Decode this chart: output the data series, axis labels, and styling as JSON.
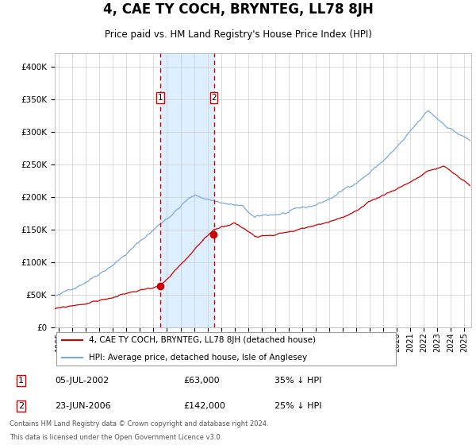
{
  "title": "4, CAE TY COCH, BRYNTEG, LL78 8JH",
  "subtitle": "Price paid vs. HM Land Registry's House Price Index (HPI)",
  "legend_line1": "4, CAE TY COCH, BRYNTEG, LL78 8JH (detached house)",
  "legend_line2": "HPI: Average price, detached house, Isle of Anglesey",
  "annotation1_label": "1",
  "annotation1_date": "05-JUL-2002",
  "annotation1_price": "£63,000",
  "annotation1_hpi": "35% ↓ HPI",
  "annotation2_label": "2",
  "annotation2_date": "23-JUN-2006",
  "annotation2_price": "£142,000",
  "annotation2_hpi": "25% ↓ HPI",
  "footer_line1": "Contains HM Land Registry data © Crown copyright and database right 2024.",
  "footer_line2": "This data is licensed under the Open Government Licence v3.0.",
  "red_color": "#cc0000",
  "blue_color": "#7aaadd",
  "shade_color": "#ddeeff",
  "grid_color": "#cccccc",
  "ylim": [
    0,
    420000
  ],
  "yticks": [
    0,
    50000,
    100000,
    150000,
    200000,
    250000,
    300000,
    350000,
    400000
  ],
  "sale1_year": 2002.51,
  "sale1_value": 63000,
  "sale2_year": 2006.47,
  "sale2_value": 142000,
  "xstart": 1994.7,
  "xend": 2025.5
}
